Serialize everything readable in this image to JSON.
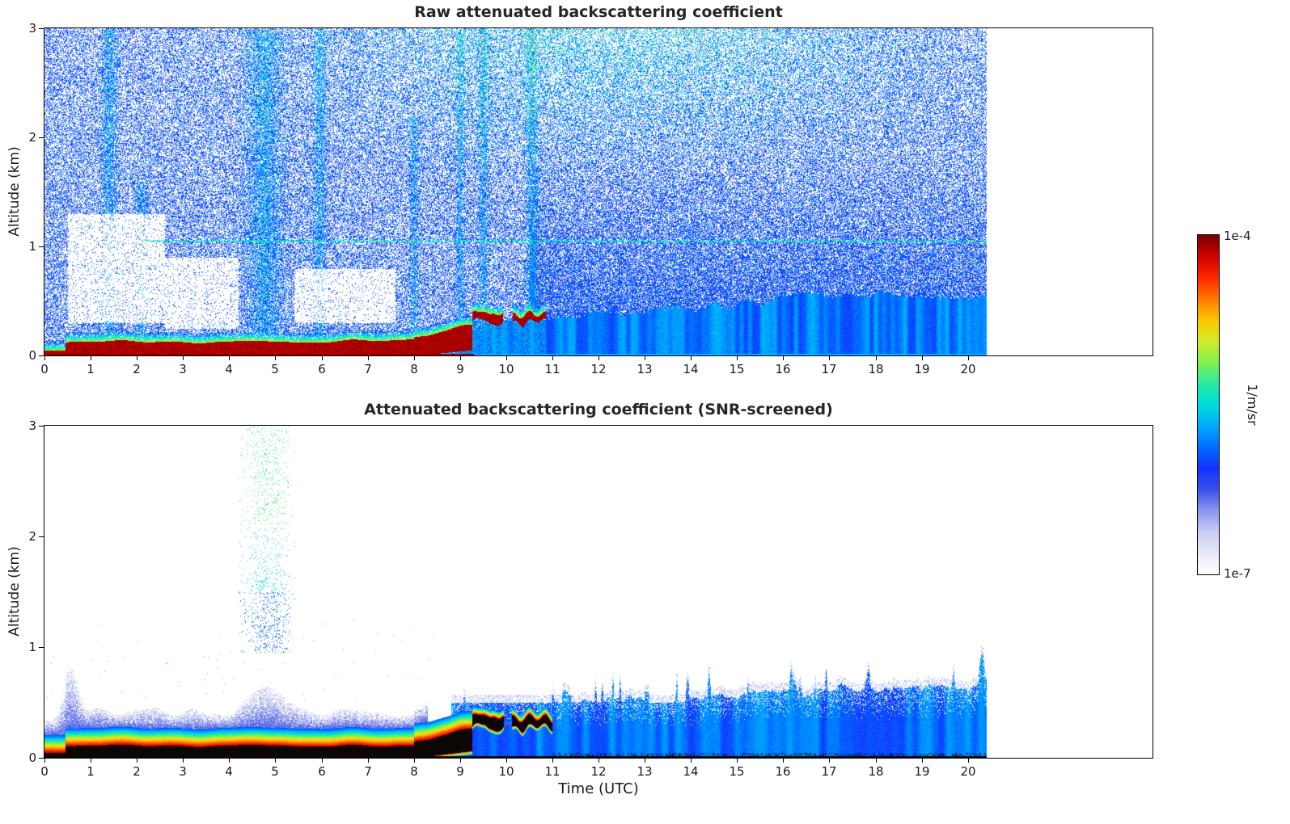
{
  "figure": {
    "xlabel": "Time (UTC)",
    "text_color": "#1a1a1a",
    "colorbar": {
      "max_label": "1e-4",
      "min_label": "1e-7",
      "units_label": "1/m/sr",
      "scale": "logarithmic",
      "colormap_stops": [
        "#ffffff",
        "#e9e9f8",
        "#c9cdf4",
        "#8a96ec",
        "#3a50ea",
        "#1432ff",
        "#006eff",
        "#00aaff",
        "#00dcdc",
        "#28eba0",
        "#82f050",
        "#d2eb28",
        "#ffc800",
        "#ff7800",
        "#ff2800",
        "#d20000",
        "#7a0000"
      ]
    }
  },
  "chart_data": [
    {
      "type": "heatmap",
      "title": "Raw attenuated backscattering coefficient",
      "xlabel": "Time (UTC)",
      "ylabel": "Altitude (km)",
      "x_axis": {
        "range_utc": [
          0,
          24
        ],
        "ticks": [
          0,
          1,
          2,
          3,
          4,
          5,
          6,
          7,
          8,
          9,
          10,
          11,
          12,
          13,
          14,
          15,
          16,
          17,
          18,
          19,
          20
        ]
      },
      "y_axis": {
        "range_km": [
          0,
          3
        ],
        "ticks": [
          0,
          1,
          2,
          3
        ]
      },
      "color_scale": {
        "type": "log",
        "min": 1e-07,
        "max": 0.0001,
        "units": "1/m/sr"
      },
      "features": {
        "data_end_utc": 20.4,
        "surface_aerosol_layer": {
          "utc": [
            0,
            8
          ],
          "top_km": 0.12,
          "intensity": "~1e-4 (dark red)"
        },
        "layer_rise": {
          "utc": [
            8,
            9.25
          ],
          "top_km_to": 0.3
        },
        "broken_elevated_patches": {
          "utc": [
            9.25,
            10.85
          ],
          "center_km": 0.33,
          "intensity": "~1e-4 (dark red blobs)"
        },
        "low_level_blue_region": {
          "utc": [
            9,
            20.4
          ],
          "top_km_range": [
            0.25,
            0.55
          ],
          "intensity": "~1e-6 (blue)"
        },
        "noise_speckle": {
          "coverage_fraction": 0.5,
          "intensity_range": "1e-7 to 3e-6",
          "note": "blue/cyan speckle everywhere; greener and denser aloft 07-18 UTC above ~1.6 km"
        },
        "vertical_plume_columns": [
          {
            "utc": 1.4,
            "halfwidth": 0.25,
            "top_km": 3.0
          },
          {
            "utc": 2.1,
            "halfwidth": 0.18,
            "top_km": 1.6
          },
          {
            "utc": 4.75,
            "halfwidth": 0.55,
            "top_km": 3.0
          },
          {
            "utc": 5.95,
            "halfwidth": 0.2,
            "top_km": 3.0
          },
          {
            "utc": 8.0,
            "halfwidth": 0.12,
            "top_km": 2.2
          },
          {
            "utc": 9.0,
            "halfwidth": 0.12,
            "top_km": 3.0
          },
          {
            "utc": 9.5,
            "halfwidth": 0.15,
            "top_km": 3.0
          },
          {
            "utc": 10.55,
            "halfwidth": 0.2,
            "top_km": 3.0
          }
        ],
        "clean_air_pockets": [
          {
            "utc": [
              0.5,
              2.6
            ],
            "km": [
              0.3,
              1.3
            ]
          },
          {
            "utc": [
              2.6,
              4.2
            ],
            "km": [
              0.25,
              0.9
            ]
          },
          {
            "utc": [
              5.4,
              7.6
            ],
            "km": [
              0.3,
              0.8
            ]
          }
        ],
        "horizontal_artifact_line_km": 1.05
      }
    },
    {
      "type": "heatmap",
      "title": "Attenuated backscattering coefficient (SNR-screened)",
      "xlabel": "Time (UTC)",
      "ylabel": "Altitude (km)",
      "x_axis": {
        "range_utc": [
          0,
          24
        ],
        "ticks": [
          0,
          1,
          2,
          3,
          4,
          5,
          6,
          7,
          8,
          9,
          10,
          11,
          12,
          13,
          14,
          15,
          16,
          17,
          18,
          19,
          20
        ]
      },
      "y_axis": {
        "range_km": [
          0,
          3
        ],
        "ticks": [
          0,
          1,
          2,
          3
        ]
      },
      "color_scale": {
        "type": "log",
        "min": 1e-07,
        "max": 0.0001,
        "units": "1/m/sr"
      },
      "features": {
        "data_end_utc": 20.4,
        "surface_aerosol_layer": {
          "utc": [
            0,
            8
          ],
          "saturated_core_top_km": 0.1,
          "core": "saturated (black, >= 1e-4)",
          "fringe": "red-orange-yellow-green-cyan-blue gradient up to ~0.27 km",
          "halo_top_km_range": [
            0.3,
            0.9
          ]
        },
        "layer_rise": {
          "utc": [
            8,
            9.25
          ],
          "top_km_to": 0.3
        },
        "broken_elevated_patches": {
          "utc": [
            9.25,
            11
          ],
          "center_km": 0.3,
          "intensity": "saturated (black) with colored fringes"
        },
        "low_level_blue_region": {
          "utc": [
            8.8,
            20.4
          ],
          "top_km_range": [
            0.3,
            0.65
          ],
          "end_spike": {
            "utc": 20.3,
            "top_km": 0.95
          }
        },
        "elevated_plume": {
          "utc": [
            4.2,
            5.45
          ],
          "km": [
            0.95,
            3.0
          ],
          "intensity": "sparse blue/cyan/green specks, 1e-6 to 5e-6"
        }
      }
    }
  ]
}
